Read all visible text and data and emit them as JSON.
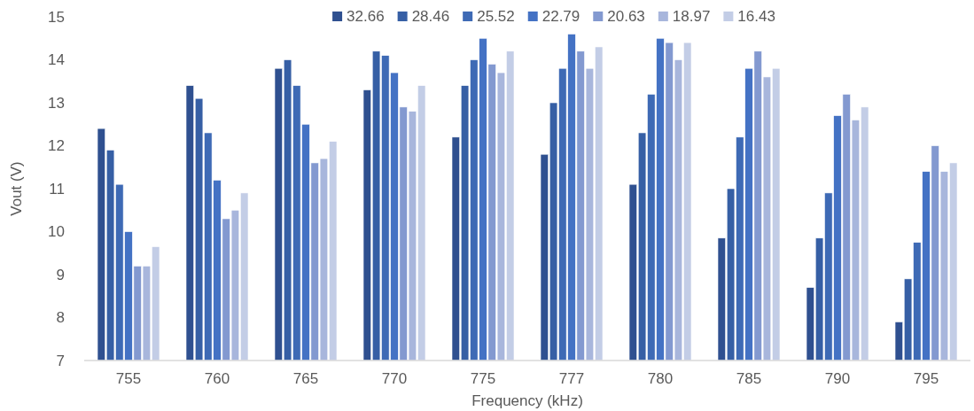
{
  "chart_data": {
    "type": "bar",
    "xlabel": "Frequency (kHz)",
    "ylabel": "Vout (V)",
    "categories": [
      "755",
      "760",
      "765",
      "770",
      "775",
      "777",
      "780",
      "785",
      "790",
      "795"
    ],
    "ylim": [
      7,
      15
    ],
    "yticks": [
      7,
      8,
      9,
      10,
      11,
      12,
      13,
      14,
      15
    ],
    "grid": false,
    "legend": "top",
    "series": [
      {
        "name": "32.66",
        "color": "#2f5090",
        "values": [
          12.4,
          13.4,
          13.8,
          13.3,
          12.2,
          11.8,
          11.1,
          9.85,
          8.7,
          7.9
        ]
      },
      {
        "name": "28.46",
        "color": "#365fa5",
        "values": [
          11.9,
          13.1,
          14.0,
          14.2,
          13.4,
          13.0,
          12.3,
          11.0,
          9.85,
          8.9
        ]
      },
      {
        "name": "25.52",
        "color": "#3e6ab5",
        "values": [
          11.1,
          12.3,
          13.4,
          14.1,
          14.0,
          13.8,
          13.2,
          12.2,
          10.9,
          9.75
        ]
      },
      {
        "name": "22.79",
        "color": "#4472c4",
        "values": [
          10.0,
          11.2,
          12.5,
          13.7,
          14.5,
          14.6,
          14.5,
          13.8,
          12.7,
          11.4
        ]
      },
      {
        "name": "20.63",
        "color": "#8399d0",
        "values": [
          9.2,
          10.3,
          11.6,
          12.9,
          13.9,
          14.2,
          14.4,
          14.2,
          13.2,
          12.0
        ]
      },
      {
        "name": "18.97",
        "color": "#a8b6dc",
        "values": [
          9.2,
          10.5,
          11.7,
          12.8,
          13.7,
          13.8,
          14.0,
          13.6,
          12.6,
          11.4
        ]
      },
      {
        "name": "16.43",
        "color": "#c3cde6",
        "values": [
          9.65,
          10.9,
          12.1,
          13.4,
          14.2,
          14.3,
          14.4,
          13.8,
          12.9,
          11.6
        ]
      }
    ]
  }
}
